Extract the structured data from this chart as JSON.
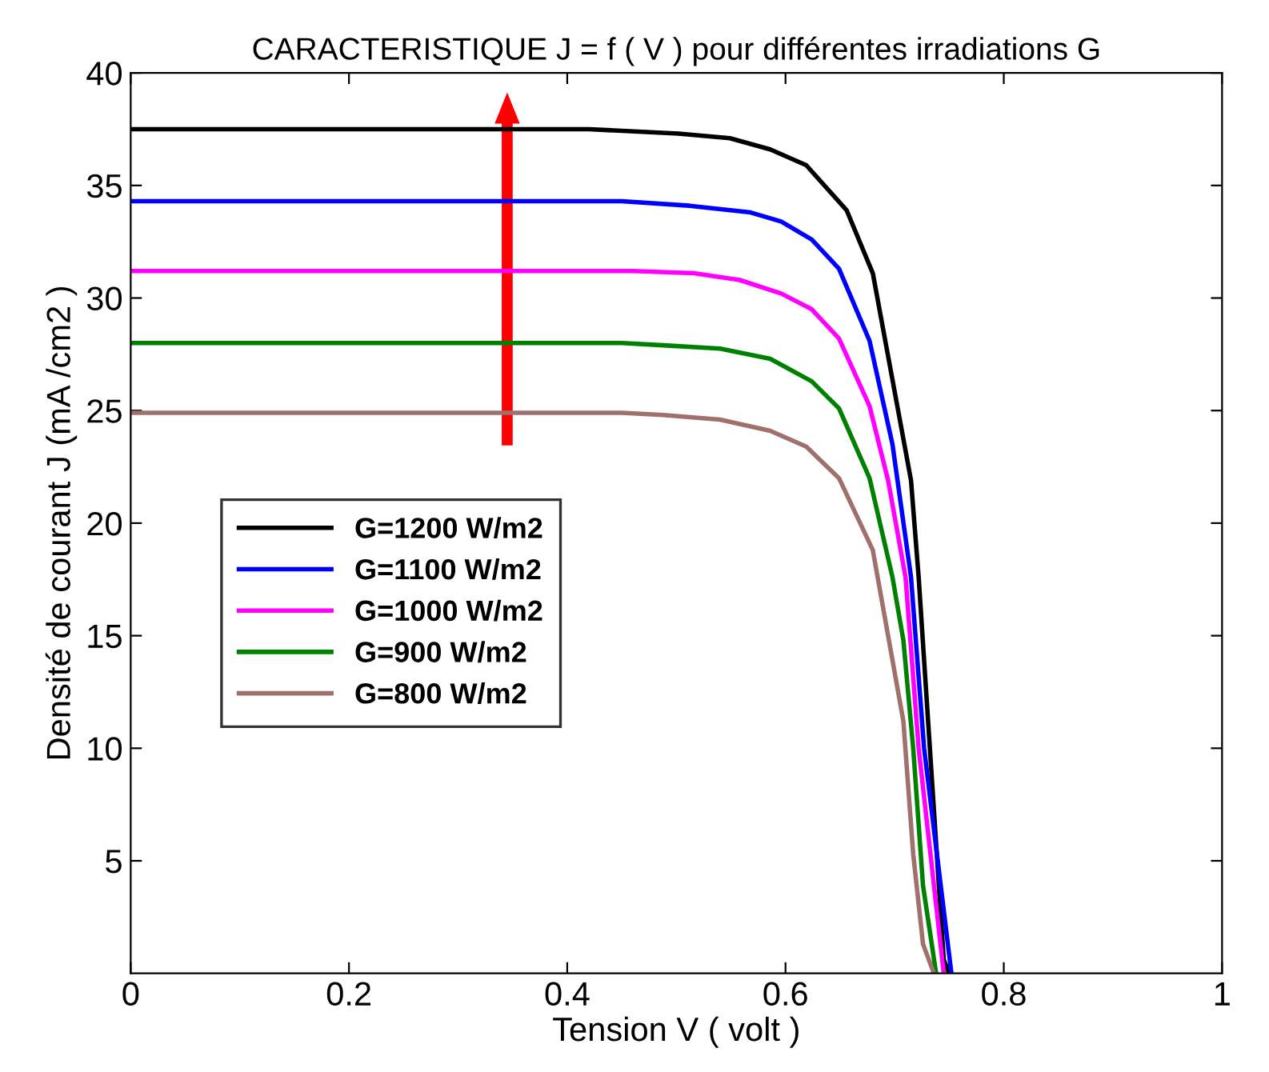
{
  "chart_data": {
    "type": "line",
    "title": "CARACTERISTIQUE J = f ( V ) pour différentes irradiations G",
    "xlabel": "Tension V ( volt )",
    "ylabel": "Densité de courant J (mA /cm2 )",
    "xlim": [
      0,
      1
    ],
    "xticks": [
      0,
      0.2,
      0.4,
      0.6,
      0.8,
      1
    ],
    "ylim": [
      0,
      40
    ],
    "yticks": [
      5,
      10,
      15,
      20,
      25,
      30,
      35,
      40
    ],
    "grid": false,
    "legend": "left",
    "line_style": "solid",
    "marker": "none",
    "series": [
      {
        "name": "G=1200 W/m2",
        "color": "#000000",
        "x": [
          0,
          0.42,
          0.502,
          0.549,
          0.586,
          0.619,
          0.656,
          0.68,
          0.715,
          0.722,
          0.745,
          0.75
        ],
        "values": [
          37.5,
          37.5,
          37.3,
          37.1,
          36.6,
          35.9,
          33.9,
          31.1,
          21.9,
          17.6,
          0.6,
          0
        ]
      },
      {
        "name": "G=1100 W/m2",
        "color": "#0000ff",
        "x": [
          0,
          0.45,
          0.512,
          0.568,
          0.596,
          0.624,
          0.649,
          0.677,
          0.698,
          0.715,
          0.727,
          0.752
        ],
        "values": [
          34.3,
          34.3,
          34.1,
          33.8,
          33.4,
          32.6,
          31.3,
          28.1,
          23.5,
          17.6,
          10.0,
          0
        ]
      },
      {
        "name": "G=1000 W/m2",
        "color": "#ff00ff",
        "x": [
          0,
          0.46,
          0.516,
          0.558,
          0.596,
          0.624,
          0.649,
          0.677,
          0.694,
          0.71,
          0.722,
          0.745
        ],
        "values": [
          31.2,
          31.2,
          31.1,
          30.8,
          30.2,
          29.5,
          28.2,
          25.2,
          21.9,
          17.6,
          10.0,
          0
        ]
      },
      {
        "name": "G=900 W/m2",
        "color": "#008000",
        "x": [
          0,
          0.45,
          0.488,
          0.54,
          0.586,
          0.624,
          0.649,
          0.677,
          0.698,
          0.708,
          0.717,
          0.726,
          0.738
        ],
        "values": [
          28.0,
          28.0,
          27.9,
          27.75,
          27.3,
          26.3,
          25.1,
          22.0,
          17.6,
          14.8,
          10.0,
          3.9,
          0
        ]
      },
      {
        "name": "G=800 W/m2",
        "color": "#a0706c",
        "x": [
          0,
          0.45,
          0.488,
          0.54,
          0.586,
          0.619,
          0.649,
          0.68,
          0.708,
          0.717,
          0.726,
          0.736
        ],
        "values": [
          24.9,
          24.9,
          24.8,
          24.6,
          24.1,
          23.4,
          22.0,
          18.8,
          11.2,
          5.3,
          1.3,
          0
        ]
      }
    ]
  }
}
